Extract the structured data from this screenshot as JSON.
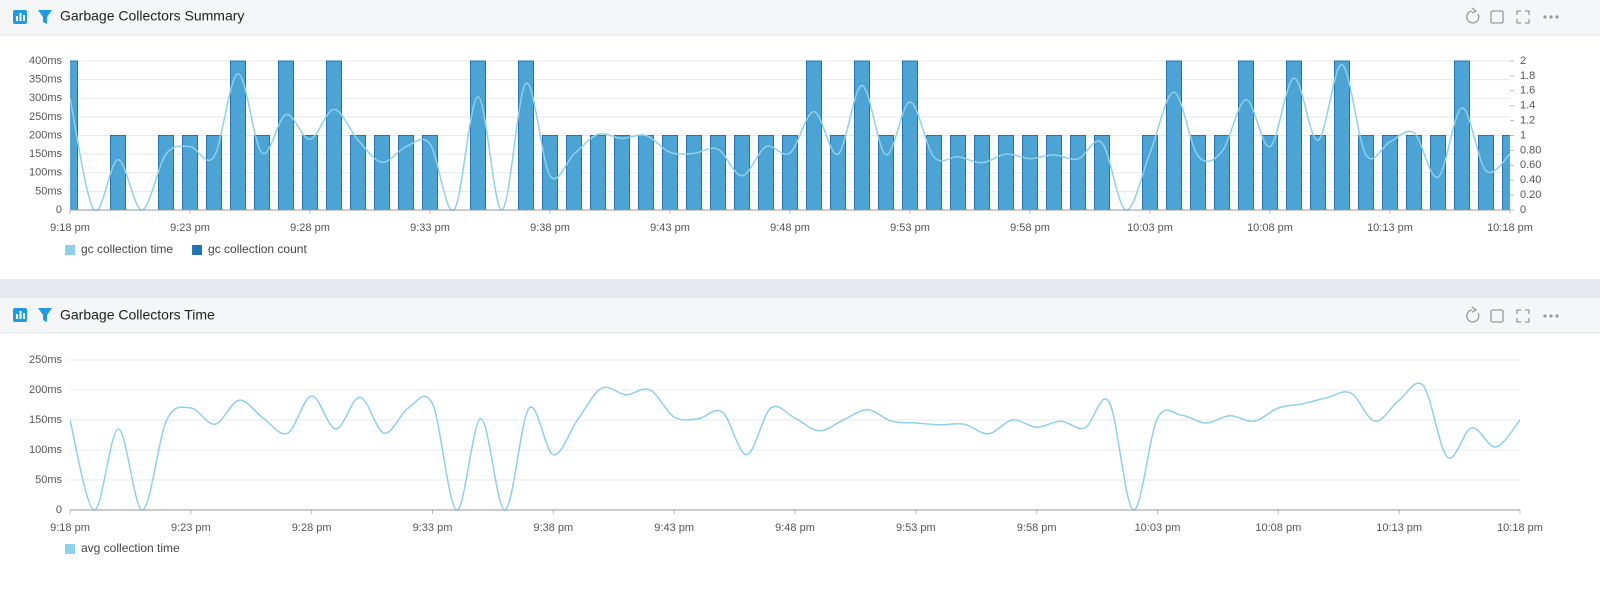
{
  "chart_data": [
    {
      "type": "bar",
      "title": "Garbage Collectors Summary",
      "categories": [
        "9:18 pm",
        null,
        null,
        null,
        null,
        "9:23 pm",
        null,
        null,
        null,
        null,
        "9:28 pm",
        null,
        null,
        null,
        null,
        "9:33 pm",
        null,
        null,
        null,
        null,
        "9:38 pm",
        null,
        null,
        null,
        null,
        "9:43 pm",
        null,
        null,
        null,
        null,
        "9:48 pm",
        null,
        null,
        null,
        null,
        "9:53 pm",
        null,
        null,
        null,
        null,
        "9:58 pm",
        null,
        null,
        null,
        null,
        "10:03 pm",
        null,
        null,
        null,
        null,
        "10:08 pm",
        null,
        null,
        null,
        null,
        "10:13 pm",
        null,
        null,
        null,
        null,
        "10:18 pm"
      ],
      "series": [
        {
          "name": "gc collection time",
          "type": "line",
          "color": "#8fd0ea",
          "values": [
            300,
            0,
            135,
            0,
            150,
            170,
            143,
            366,
            153,
            256,
            190,
            270,
            188,
            128,
            170,
            177,
            0,
            304,
            0,
            340,
            92,
            150,
            203,
            192,
            200,
            155,
            152,
            163,
            92,
            170,
            153,
            264,
            150,
            334,
            148,
            290,
            142,
            143,
            127,
            150,
            138,
            148,
            137,
            180,
            0,
            153,
            316,
            145,
            157,
            296,
            170,
            354,
            187,
            390,
            148,
            183,
            207,
            88,
            274,
            105,
            150
          ]
        },
        {
          "name": "gc collection count",
          "type": "bar",
          "axis": "y2",
          "color": "#1f74b4",
          "fill_color": "#4ca4d4",
          "values": [
            2,
            0,
            1,
            0,
            1,
            1,
            1,
            2,
            1,
            2,
            1,
            2,
            1,
            1,
            1,
            1,
            0,
            2,
            0,
            2,
            1,
            1,
            1,
            1,
            1,
            1,
            1,
            1,
            1,
            1,
            1,
            2,
            1,
            2,
            1,
            2,
            1,
            1,
            1,
            1,
            1,
            1,
            1,
            1,
            0,
            1,
            2,
            1,
            1,
            2,
            1,
            2,
            1,
            2,
            1,
            1,
            1,
            1,
            2,
            1,
            1
          ]
        }
      ],
      "ylim": [
        0,
        400
      ],
      "yticks": [
        0,
        {
          "value": 50,
          "label": "50ms"
        },
        {
          "value": 100,
          "label": "100ms"
        },
        {
          "value": 150,
          "label": "150ms"
        },
        {
          "value": 200,
          "label": "200ms"
        },
        {
          "value": 250,
          "label": "250ms"
        },
        {
          "value": 300,
          "label": "300ms"
        },
        {
          "value": 350,
          "label": "350ms"
        },
        {
          "value": 400,
          "label": "400ms"
        }
      ],
      "y2lim": [
        0,
        2
      ],
      "y2ticks": [
        0,
        {
          "value": 0.2,
          "label": "0.20"
        },
        {
          "value": 0.4,
          "label": "0.40"
        },
        {
          "value": 0.6,
          "label": "0.60"
        },
        {
          "value": 0.8,
          "label": "0.80"
        },
        1,
        1.2,
        1.4,
        1.6,
        1.8,
        2
      ],
      "grid": true,
      "legend": "bottom-left"
    },
    {
      "type": "line",
      "title": "Garbage Collectors Time",
      "categories": [
        "9:18 pm",
        null,
        null,
        null,
        null,
        "9:23 pm",
        null,
        null,
        null,
        null,
        "9:28 pm",
        null,
        null,
        null,
        null,
        "9:33 pm",
        null,
        null,
        null,
        null,
        "9:38 pm",
        null,
        null,
        null,
        null,
        "9:43 pm",
        null,
        null,
        null,
        null,
        "9:48 pm",
        null,
        null,
        null,
        null,
        "9:53 pm",
        null,
        null,
        null,
        null,
        "9:58 pm",
        null,
        null,
        null,
        null,
        "10:03 pm",
        null,
        null,
        null,
        null,
        "10:08 pm",
        null,
        null,
        null,
        null,
        "10:13 pm",
        null,
        null,
        null,
        null,
        "10:18 pm"
      ],
      "series": [
        {
          "name": "avg collection time",
          "type": "line",
          "color": "#8fd0ea",
          "values": [
            150,
            0,
            135,
            0,
            150,
            170,
            143,
            183,
            153,
            128,
            190,
            135,
            188,
            128,
            170,
            177,
            0,
            152,
            0,
            170,
            92,
            150,
            203,
            192,
            200,
            155,
            152,
            163,
            92,
            170,
            153,
            132,
            150,
            167,
            148,
            145,
            142,
            143,
            127,
            150,
            138,
            148,
            137,
            180,
            0,
            153,
            158,
            145,
            157,
            148,
            170,
            177,
            187,
            195,
            148,
            183,
            207,
            88,
            137,
            105,
            150
          ]
        }
      ],
      "ylim": [
        0,
        250
      ],
      "yticks": [
        0,
        {
          "value": 50,
          "label": "50ms"
        },
        {
          "value": 100,
          "label": "100ms"
        },
        {
          "value": 150,
          "label": "150ms"
        },
        {
          "value": 200,
          "label": "200ms"
        },
        {
          "value": 250,
          "label": "250ms"
        }
      ],
      "grid": true,
      "legend": "bottom-left"
    }
  ]
}
